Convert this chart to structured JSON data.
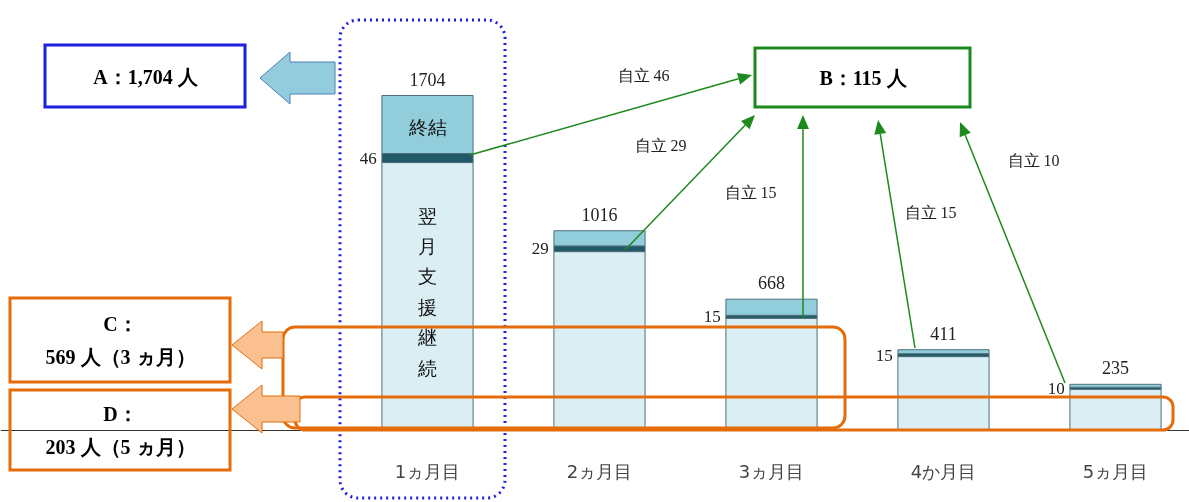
{
  "chart_data": {
    "type": "bar",
    "stacked": true,
    "tick_labels": "x",
    "grid": false,
    "categories": [
      "1ヵ月目",
      "2ヵ月目",
      "3ヵ月目",
      "4か月目",
      "5ヵ月目"
    ],
    "series": [
      {
        "color": "#daeef3",
        "values": [
          1363,
          910,
          571,
          376,
          210
        ]
      },
      {
        "color": "#215968",
        "values": [
          46,
          29,
          15,
          15,
          10
        ],
        "value_labels": [
          "46",
          "29",
          "15",
          "15",
          "10"
        ]
      },
      {
        "color": "#92cddc",
        "values": [
          295,
          77,
          82,
          20,
          15
        ]
      }
    ],
    "totals": [
      "1704",
      "1016",
      "668",
      "411",
      "235"
    ],
    "annotations": [
      "A：1,704 人",
      "B：115 人",
      "C：\n569 人（3 ヵ月）",
      "D：\n203 人（5 ヵ月）",
      "終結",
      "翌月支援継続",
      "自立 46",
      "自立 29",
      "自立 15",
      "自立 15",
      "自立 10"
    ]
  }
}
